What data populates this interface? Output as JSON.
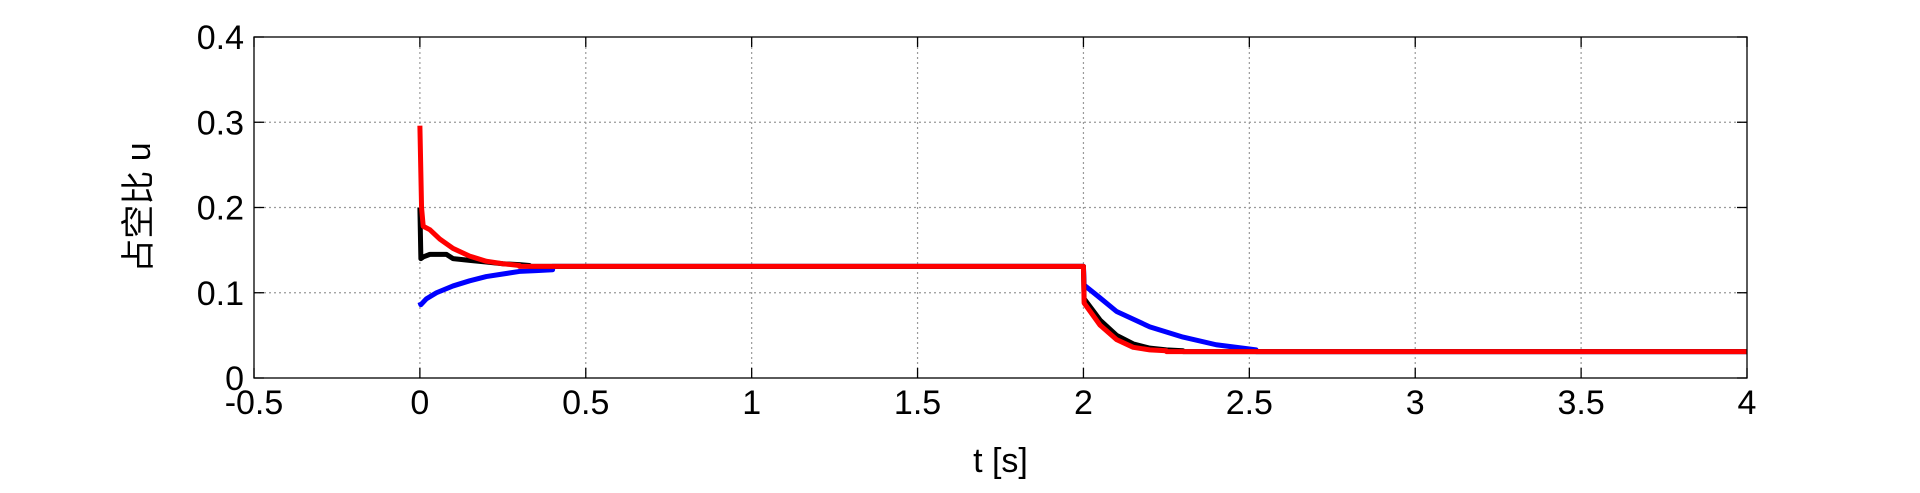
{
  "chart_data": {
    "type": "line",
    "xlabel": "t [s]",
    "ylabel": "占空比 u",
    "xlim": [
      -0.5,
      4
    ],
    "ylim": [
      0,
      0.4
    ],
    "xticks": [
      -0.5,
      0,
      0.5,
      1,
      1.5,
      2,
      2.5,
      3,
      3.5,
      4
    ],
    "yticks": [
      0,
      0.1,
      0.2,
      0.3,
      0.4
    ],
    "xtick_labels": [
      "-0.5",
      "0",
      "0.5",
      "1",
      "1.5",
      "2",
      "2.5",
      "3",
      "3.5",
      "4"
    ],
    "ytick_labels": [
      "0",
      "0.1",
      "0.2",
      "0.3",
      "0.4"
    ],
    "grid": true,
    "series": [
      {
        "color": "#0000ff",
        "x": [
          0,
          0.003,
          0.02,
          0.05,
          0.1,
          0.15,
          0.2,
          0.25,
          0.3,
          0.35,
          0.4,
          0.4,
          2.0,
          2.0,
          2.002,
          2.05,
          2.1,
          2.2,
          2.3,
          2.4,
          2.5,
          2.52,
          2.52,
          4.0
        ],
        "y": [
          0.089,
          0.086,
          0.093,
          0.1,
          0.108,
          0.114,
          0.119,
          0.122,
          0.125,
          0.126,
          0.127,
          0.131,
          0.131,
          0.131,
          0.109,
          0.094,
          0.078,
          0.06,
          0.048,
          0.039,
          0.034,
          0.033,
          0.031,
          0.031
        ]
      },
      {
        "color": "#000000",
        "x": [
          0,
          0.003,
          0.01,
          0.03,
          0.08,
          0.1,
          0.15,
          0.2,
          0.25,
          0.3,
          0.33,
          0.33,
          2.0,
          2.0,
          2.002,
          2.05,
          2.1,
          2.15,
          2.2,
          2.25,
          2.3,
          2.3,
          4.0
        ],
        "y": [
          0.2,
          0.14,
          0.142,
          0.145,
          0.145,
          0.14,
          0.138,
          0.136,
          0.134,
          0.133,
          0.132,
          0.131,
          0.131,
          0.131,
          0.093,
          0.068,
          0.05,
          0.04,
          0.035,
          0.033,
          0.032,
          0.031,
          0.031
        ]
      },
      {
        "color": "#ff0000",
        "x": [
          0,
          0.005,
          0.01,
          0.03,
          0.06,
          0.1,
          0.15,
          0.2,
          0.25,
          0.3,
          0.3,
          2.0,
          2.0,
          2.002,
          2.05,
          2.1,
          2.15,
          2.2,
          2.25,
          2.25,
          4.0
        ],
        "y": [
          0.296,
          0.2,
          0.178,
          0.174,
          0.163,
          0.152,
          0.143,
          0.137,
          0.134,
          0.132,
          0.131,
          0.131,
          0.131,
          0.088,
          0.062,
          0.045,
          0.036,
          0.033,
          0.032,
          0.031,
          0.031
        ]
      }
    ]
  }
}
